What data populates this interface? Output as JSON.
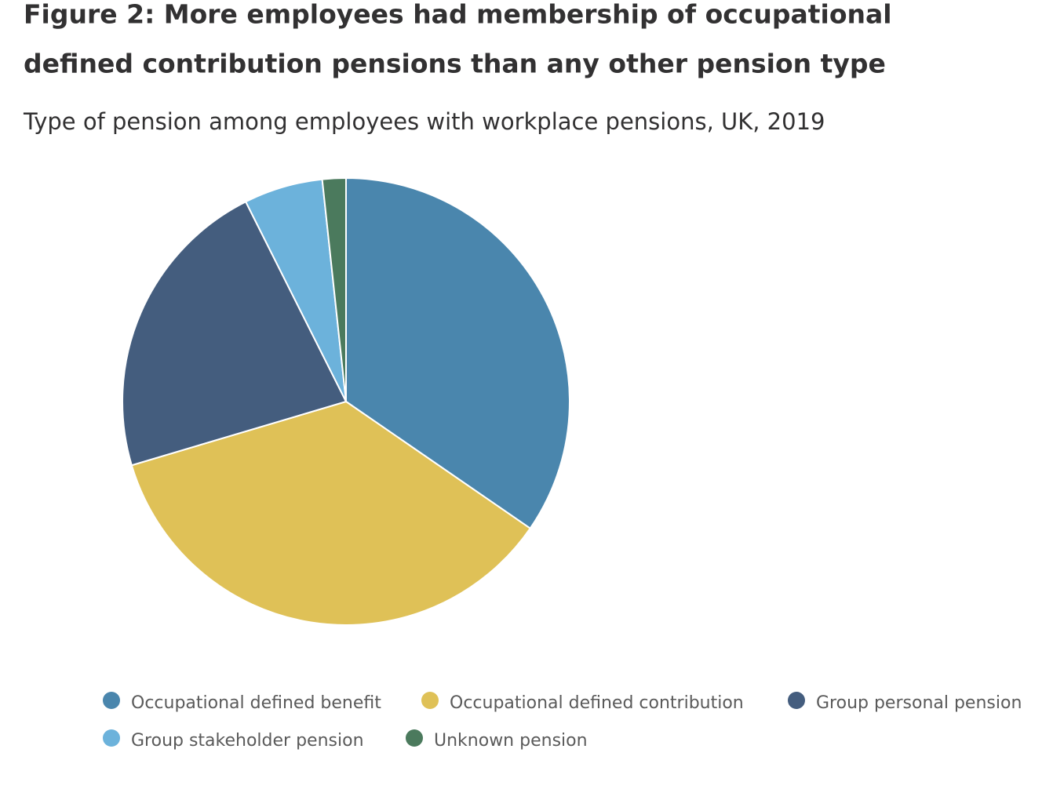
{
  "chart_data": {
    "type": "pie",
    "title": [
      "Figure 2: More employees had membership of occupational",
      "defined contribution pensions than any other pension type"
    ],
    "subtitle": "Type of pension among employees with workplace pensions, UK, 2019",
    "categories": [
      "Occupational defined benefit",
      "Occupational defined contribution",
      "Group personal pension",
      "Group stakeholder pension",
      "Unknown pension"
    ],
    "values": [
      34.6,
      35.8,
      22.2,
      5.7,
      1.7
    ],
    "colors": [
      "#4a86ad",
      "#dfc157",
      "#445d7e",
      "#6cb2db",
      "#4b7a5d"
    ],
    "legend": "bottom"
  }
}
